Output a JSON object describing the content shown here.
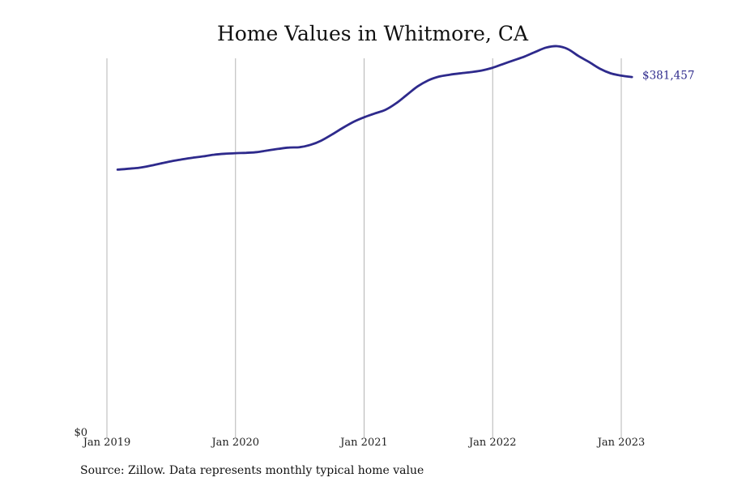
{
  "chart_data": {
    "type": "line",
    "title": "Home Values in Whitmore, CA",
    "xlabel": "",
    "ylabel": "",
    "grid": "vertical",
    "x_ticks": [
      {
        "label": "Jan 2019",
        "t": 2019.0
      },
      {
        "label": "Jan 2020",
        "t": 2020.0
      },
      {
        "label": "Jan 2021",
        "t": 2021.0
      },
      {
        "label": "Jan 2022",
        "t": 2022.0
      },
      {
        "label": "Jan 2023",
        "t": 2023.0
      }
    ],
    "x_range": [
      2019.0,
      2023.0
    ],
    "ylim": [
      0,
      400000
    ],
    "y_ticks": [
      {
        "label": "$0",
        "value": 0
      }
    ],
    "end_label": "$381,457",
    "line_color": "#2e2a8c",
    "grid_color": "#b5b5b5",
    "series": [
      {
        "x": [
          2019.0833,
          2019.1667,
          2019.25,
          2019.3333,
          2019.4167,
          2019.5,
          2019.5833,
          2019.6667,
          2019.75,
          2019.8333,
          2019.9167,
          2020.0,
          2020.0833,
          2020.1667,
          2020.25,
          2020.3333,
          2020.4167,
          2020.5,
          2020.5833,
          2020.6667,
          2020.75,
          2020.8333,
          2020.9167,
          2021.0,
          2021.0833,
          2021.1667,
          2021.25,
          2021.3333,
          2021.4167,
          2021.5,
          2021.5833,
          2021.6667,
          2021.75,
          2021.8333,
          2021.9167,
          2022.0,
          2022.0833,
          2022.1667,
          2022.25,
          2022.3333,
          2022.4167,
          2022.5,
          2022.5833,
          2022.6667,
          2022.75,
          2022.8333,
          2022.9167,
          2023.0,
          2023.0833
        ],
        "y": [
          281000,
          282000,
          283000,
          285000,
          287500,
          290000,
          292000,
          293800,
          295200,
          297000,
          298000,
          298600,
          299000,
          299700,
          301500,
          303200,
          304600,
          305000,
          307500,
          312000,
          318500,
          325500,
          332000,
          337000,
          341000,
          345000,
          352000,
          361000,
          370000,
          376500,
          380500,
          382500,
          384000,
          385300,
          387000,
          390000,
          394000,
          398000,
          402000,
          407000,
          411500,
          413000,
          410000,
          402500,
          396000,
          389000,
          384000,
          381457,
          380000
        ]
      }
    ]
  },
  "source_note": "Source: Zillow. Data represents monthly typical home value"
}
